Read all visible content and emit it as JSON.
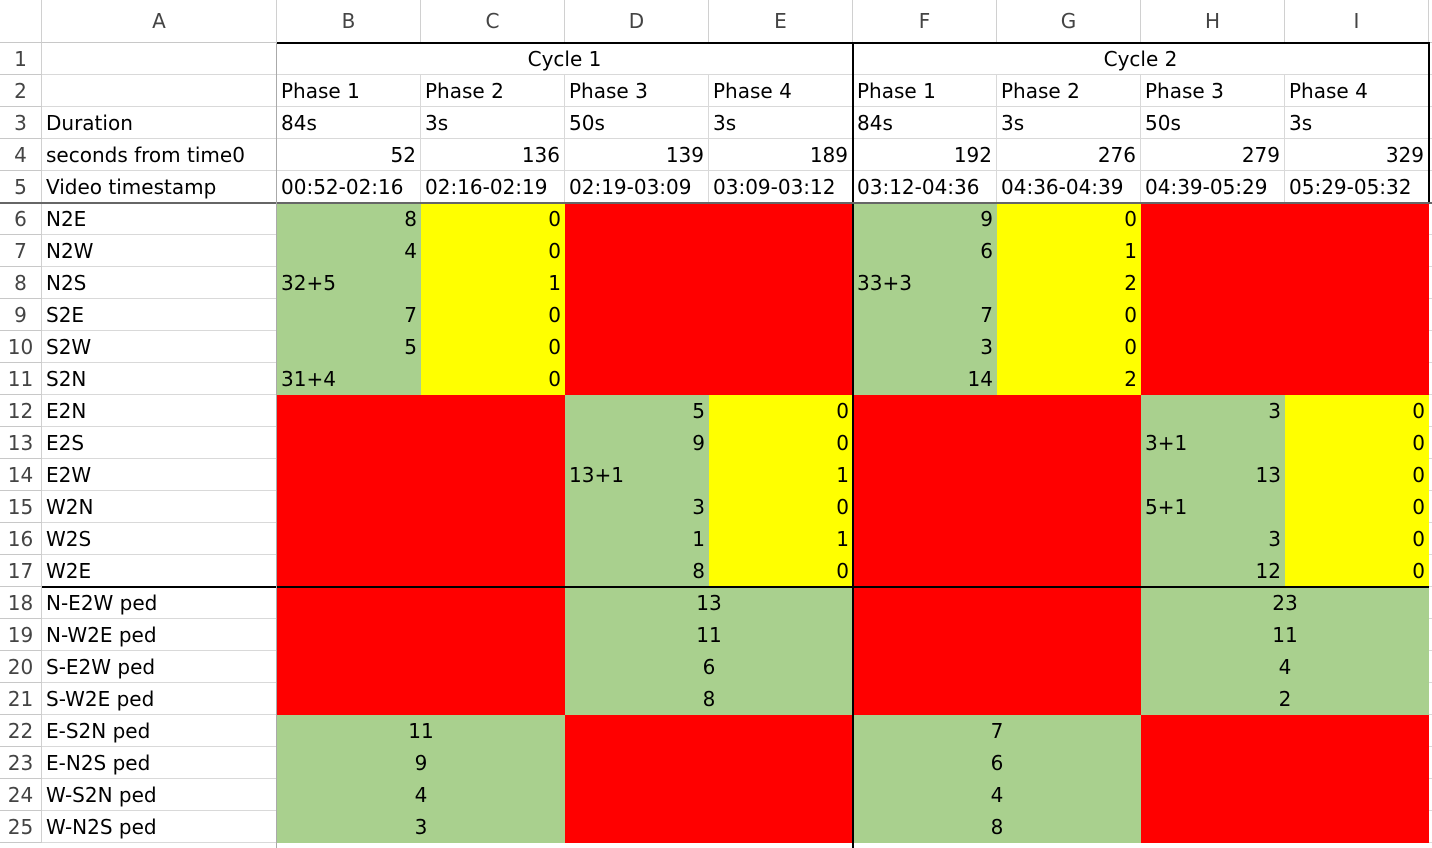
{
  "column_headers": [
    "A",
    "B",
    "C",
    "D",
    "E",
    "F",
    "G",
    "H",
    "I"
  ],
  "rows": [
    {
      "number": 1,
      "cells": {
        "B": "Cycle 1",
        "F": "Cycle 2"
      }
    },
    {
      "number": 2,
      "cells": {
        "B": "Phase 1",
        "C": "Phase 2",
        "D": "Phase 3",
        "E": "Phase 4",
        "F": "Phase 1",
        "G": "Phase 2",
        "H": "Phase 3",
        "I": "Phase 4"
      }
    },
    {
      "number": 3,
      "cells": {
        "A": "Duration",
        "B": "84s",
        "C": "3s",
        "D": "50s",
        "E": "3s",
        "F": "84s",
        "G": "3s",
        "H": "50s",
        "I": "3s"
      }
    },
    {
      "number": 4,
      "cells": {
        "A": "seconds from time0",
        "B": 52,
        "C": 136,
        "D": 139,
        "E": 189,
        "F": 192,
        "G": 276,
        "H": 279,
        "I": 329
      }
    },
    {
      "number": 5,
      "cells": {
        "A": "Video timestamp",
        "B": "00:52-02:16",
        "C": "02:16-02:19",
        "D": "02:19-03:09",
        "E": "03:09-03:12",
        "F": "03:12-04:36",
        "G": "04:36-04:39",
        "H": "04:39-05:29",
        "I": "05:29-05:32"
      }
    },
    {
      "number": 6,
      "cells": {
        "A": "N2E",
        "B": 8,
        "C": 0,
        "F": 9,
        "G": 0
      }
    },
    {
      "number": 7,
      "cells": {
        "A": "N2W",
        "B": 4,
        "C": 0,
        "F": 6,
        "G": 1
      }
    },
    {
      "number": 8,
      "cells": {
        "A": "N2S",
        "B": "32+5",
        "C": 1,
        "F": "33+3",
        "G": 2
      }
    },
    {
      "number": 9,
      "cells": {
        "A": "S2E",
        "B": 7,
        "C": 0,
        "F": 7,
        "G": 0
      }
    },
    {
      "number": 10,
      "cells": {
        "A": "S2W",
        "B": 5,
        "C": 0,
        "F": 3,
        "G": 0
      }
    },
    {
      "number": 11,
      "cells": {
        "A": "S2N",
        "B": "31+4",
        "C": 0,
        "F": 14,
        "G": 2
      }
    },
    {
      "number": 12,
      "cells": {
        "A": "E2N",
        "D": 5,
        "E": 0,
        "H": 3,
        "I": 0
      }
    },
    {
      "number": 13,
      "cells": {
        "A": "E2S",
        "D": 9,
        "E": 0,
        "H": "3+1",
        "I": 0
      }
    },
    {
      "number": 14,
      "cells": {
        "A": "E2W",
        "D": "13+1",
        "E": 1,
        "H": 13,
        "I": 0
      }
    },
    {
      "number": 15,
      "cells": {
        "A": "W2N",
        "D": 3,
        "E": 0,
        "H": "5+1",
        "I": 0
      }
    },
    {
      "number": 16,
      "cells": {
        "A": "W2S",
        "D": 1,
        "E": 1,
        "H": 3,
        "I": 0
      }
    },
    {
      "number": 17,
      "cells": {
        "A": "W2E",
        "D": 8,
        "E": 0,
        "H": 12,
        "I": 0
      }
    },
    {
      "number": 18,
      "cells": {
        "A": "N-E2W ped",
        "D": 13,
        "H": 23
      }
    },
    {
      "number": 19,
      "cells": {
        "A": "N-W2E ped",
        "D": 11,
        "H": 11
      }
    },
    {
      "number": 20,
      "cells": {
        "A": "S-E2W ped",
        "D": 6,
        "H": 4
      }
    },
    {
      "number": 21,
      "cells": {
        "A": "S-W2E ped",
        "D": 8,
        "H": 2
      }
    },
    {
      "number": 22,
      "cells": {
        "A": "E-S2N ped",
        "B": 11,
        "F": 7
      }
    },
    {
      "number": 23,
      "cells": {
        "A": "E-N2S ped",
        "B": 9,
        "F": 6
      }
    },
    {
      "number": 24,
      "cells": {
        "A": "W-S2N ped",
        "B": 4,
        "F": 4
      }
    },
    {
      "number": 25,
      "cells": {
        "A": "W-N2S ped",
        "B": 3,
        "F": 8
      }
    }
  ]
}
